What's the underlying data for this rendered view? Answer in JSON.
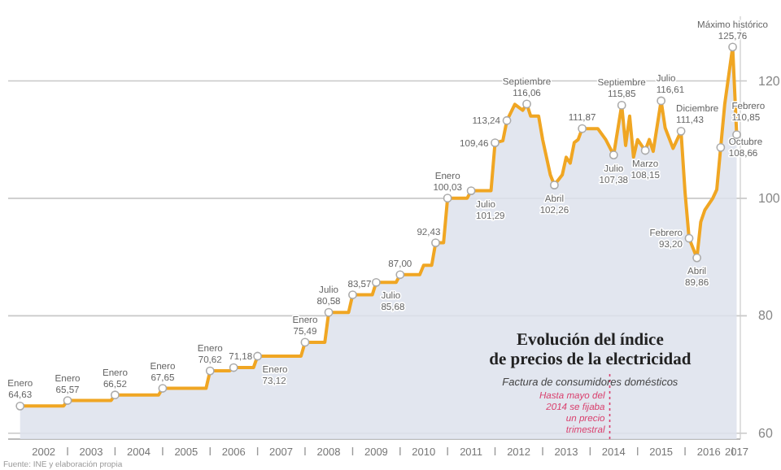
{
  "chart_data": {
    "type": "area",
    "title": "Evolución del índice de precios de la electricidad",
    "subtitle": "Factura de consumidores domésticos",
    "x": [
      "2002-01",
      "2002-12",
      "2003-01",
      "2003-12",
      "2004-01",
      "2004-12",
      "2005-01",
      "2005-12",
      "2006-01",
      "2006-06",
      "2006-07",
      "2006-12",
      "2007-01",
      "2007-12",
      "2008-01",
      "2008-06",
      "2008-07",
      "2008-12",
      "2009-01",
      "2009-06",
      "2009-07",
      "2009-12",
      "2010-01",
      "2010-06",
      "2010-07",
      "2010-09",
      "2010-10",
      "2010-12",
      "2011-01",
      "2011-06",
      "2011-07",
      "2011-12",
      "2012-01",
      "2012-03",
      "2012-04",
      "2012-06",
      "2012-08",
      "2012-09",
      "2012-10",
      "2012-12",
      "2013-01",
      "2013-03",
      "2013-04",
      "2013-06",
      "2013-07",
      "2013-08",
      "2013-09",
      "2013-10",
      "2013-11",
      "2014-03",
      "2014-05",
      "2014-07",
      "2014-09",
      "2014-10",
      "2014-11",
      "2014-12",
      "2015-01",
      "2015-02",
      "2015-03",
      "2015-04",
      "2015-05",
      "2015-07",
      "2015-08",
      "2015-10",
      "2015-12",
      "2016-01",
      "2016-02",
      "2016-04",
      "2016-05",
      "2016-06",
      "2016-08",
      "2016-09",
      "2016-10",
      "2016-11",
      "2017-01",
      "2017-02"
    ],
    "series": [
      {
        "color": "#f0a623",
        "values": [
          64.63,
          64.63,
          65.57,
          65.57,
          66.52,
          66.52,
          67.65,
          67.65,
          70.62,
          70.62,
          71.18,
          71.18,
          73.12,
          73.12,
          75.49,
          75.49,
          80.58,
          80.58,
          83.57,
          83.57,
          85.68,
          85.68,
          87.0,
          87.0,
          88.6,
          88.6,
          92.43,
          92.43,
          100.03,
          100.03,
          101.29,
          101.29,
          109.46,
          109.8,
          113.24,
          116,
          115,
          116.06,
          114,
          114,
          110,
          104,
          102.26,
          104,
          107,
          106,
          109.5,
          110,
          111.87,
          111.87,
          110,
          107.38,
          115.85,
          109,
          114,
          107,
          110,
          109,
          108.15,
          110,
          108,
          116.61,
          112,
          108.5,
          111.43,
          101,
          93.2,
          89.86,
          96,
          98,
          100,
          101.5,
          108.66,
          116,
          125.76,
          110.85
        ],
        "value_labels": [
          "64,63",
          null,
          "65,57",
          null,
          "66,52",
          null,
          "67,65",
          null,
          "70,62",
          null,
          "71,18",
          null,
          "73,12",
          null,
          "75,49",
          null,
          "80,58",
          null,
          "83,57",
          null,
          "85,68",
          null,
          "87,00",
          null,
          null,
          null,
          "92,43",
          null,
          "100,03",
          null,
          "101,29",
          null,
          "109,46",
          null,
          "113,24",
          null,
          null,
          "116,06",
          null,
          null,
          null,
          null,
          "102,26",
          null,
          null,
          null,
          null,
          null,
          "111,87",
          null,
          null,
          "107,38",
          "115,85",
          null,
          null,
          null,
          null,
          null,
          "108,15",
          null,
          null,
          "116,61",
          null,
          null,
          "111,43",
          null,
          "93,20",
          "89,86",
          null,
          null,
          null,
          null,
          "108,66",
          null,
          "125,76",
          "110,85"
        ]
      }
    ],
    "annotations": [
      {
        "text": "Enero",
        "x": "2002-01",
        "y": 64.63
      },
      {
        "text": "Enero",
        "x": "2003-01",
        "y": 65.57
      },
      {
        "text": "Enero",
        "x": "2004-01",
        "y": 66.52
      },
      {
        "text": "Enero",
        "x": "2005-01",
        "y": 67.65
      },
      {
        "text": "Enero",
        "x": "2006-01",
        "y": 70.62
      },
      {
        "text": "Enero",
        "x": "2007-01",
        "y": 73.12
      },
      {
        "text": "Enero",
        "x": "2008-01",
        "y": 75.49
      },
      {
        "text": "Julio",
        "x": "2008-07",
        "y": 80.58
      },
      {
        "text": "Julio",
        "x": "2009-07",
        "y": 85.68
      },
      {
        "text": "Enero",
        "x": "2011-01",
        "y": 100.03
      },
      {
        "text": "Julio",
        "x": "2011-07",
        "y": 101.29
      },
      {
        "text": "Septiembre",
        "x": "2012-09",
        "y": 116.06
      },
      {
        "text": "Abril",
        "x": "2013-04",
        "y": 102.26
      },
      {
        "text": "Julio",
        "x": "2014-07",
        "y": 107.38
      },
      {
        "text": "Septiembre",
        "x": "2014-09",
        "y": 115.85
      },
      {
        "text": "Marzo",
        "x": "2015-03",
        "y": 108.15
      },
      {
        "text": "Julio",
        "x": "2015-07",
        "y": 116.61
      },
      {
        "text": "Diciembre",
        "x": "2015-12",
        "y": 111.43
      },
      {
        "text": "Febrero",
        "x": "2016-02",
        "y": 93.2
      },
      {
        "text": "Abril",
        "x": "2016-04",
        "y": 89.86
      },
      {
        "text": "Octubre",
        "x": "2016-10",
        "y": 108.66
      },
      {
        "text": "Máximo histórico",
        "x": "2017-01",
        "y": 125.76
      },
      {
        "text": "Febrero",
        "x": "2017-02",
        "y": 110.85
      },
      "Fuente: INE y elaboración propia"
    ],
    "ref_lines": [
      {
        "axis": "x",
        "value": "2014-06",
        "label": "Hasta mayo del 2014 se fijaba un precio trimestral",
        "color": "#d9416e",
        "line_style": "dotted"
      }
    ],
    "xlim": [
      "2001-10",
      "2017-03"
    ],
    "xticks": [
      {
        "value": "2002-07",
        "label": "2002"
      },
      {
        "value": "2003-01",
        "label": null
      },
      {
        "value": "2003-07",
        "label": "2003"
      },
      {
        "value": "2004-01",
        "label": null
      },
      {
        "value": "2004-07",
        "label": "2004"
      },
      {
        "value": "2005-01",
        "label": null
      },
      {
        "value": "2005-07",
        "label": "2005"
      },
      {
        "value": "2006-01",
        "label": null
      },
      {
        "value": "2006-07",
        "label": "2006"
      },
      {
        "value": "2007-01",
        "label": null
      },
      {
        "value": "2007-07",
        "label": "2007"
      },
      {
        "value": "2008-01",
        "label": null
      },
      {
        "value": "2008-07",
        "label": "2008"
      },
      {
        "value": "2009-01",
        "label": null
      },
      {
        "value": "2009-07",
        "label": "2009"
      },
      {
        "value": "2010-01",
        "label": null
      },
      {
        "value": "2010-07",
        "label": "2010"
      },
      {
        "value": "2011-01",
        "label": null
      },
      {
        "value": "2011-07",
        "label": "2011"
      },
      {
        "value": "2012-01",
        "label": null
      },
      {
        "value": "2012-07",
        "label": "2012"
      },
      {
        "value": "2013-01",
        "label": null
      },
      {
        "value": "2013-07",
        "label": "2013"
      },
      {
        "value": "2014-01",
        "label": null
      },
      {
        "value": "2014-07",
        "label": "2014"
      },
      {
        "value": "2015-01",
        "label": null
      },
      {
        "value": "2015-07",
        "label": "2015"
      },
      {
        "value": "2016-01",
        "label": null
      },
      {
        "value": "2016-07",
        "label": "2016"
      },
      {
        "value": "2017-01",
        "label": null
      },
      {
        "value": "2017-02",
        "label": "2017"
      }
    ],
    "ylim": [
      59,
      131
    ],
    "yticks": [
      60,
      80,
      100,
      120
    ],
    "grid": "y"
  }
}
